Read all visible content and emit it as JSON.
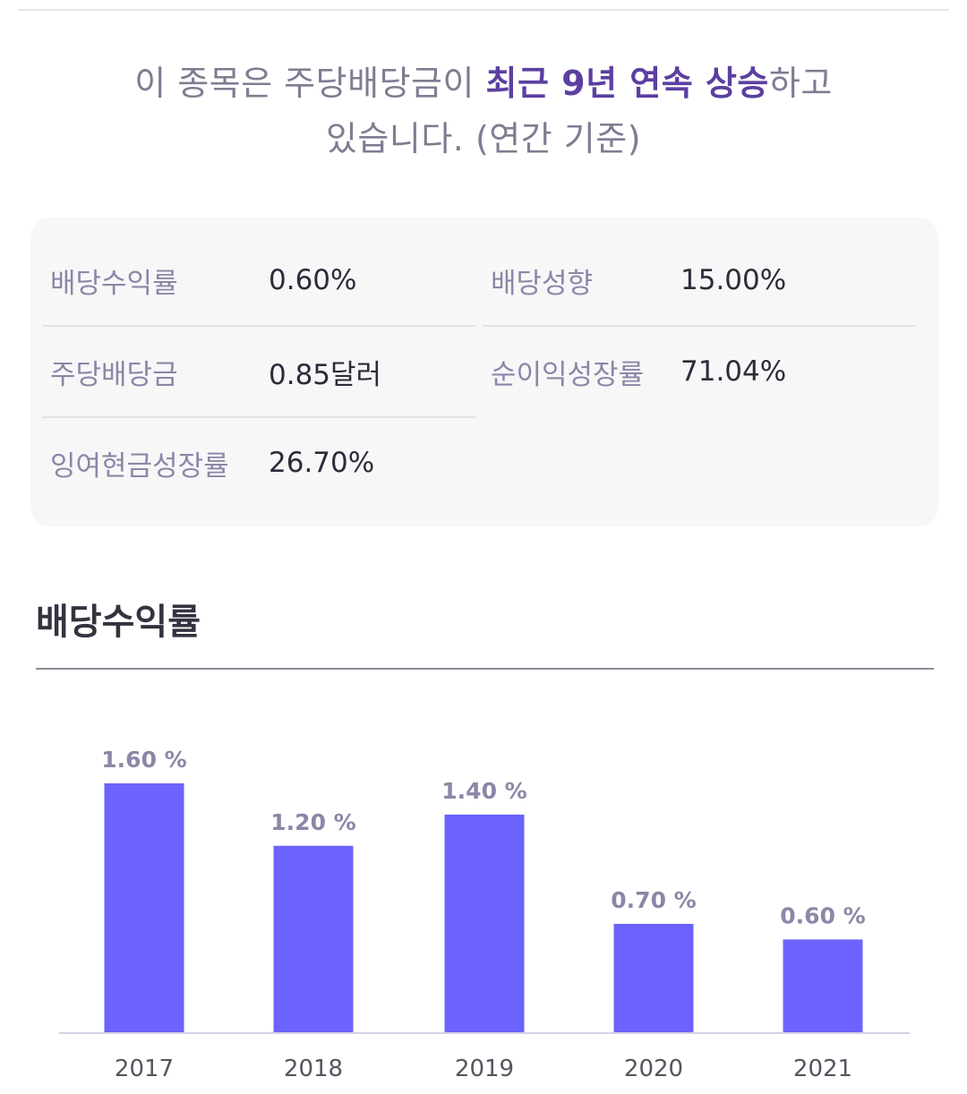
{
  "headline": {
    "prefix": "이 종목은 주당배당금이 ",
    "highlight": "최근 9년 연속 상승",
    "suffix": "하고",
    "line2": "있습니다. (연간 기준)"
  },
  "metrics": [
    {
      "label": "배당수익률",
      "value": "0.60%"
    },
    {
      "label": "배당성향",
      "value": "15.00%"
    },
    {
      "label": "주당배당금",
      "value": "0.85달러"
    },
    {
      "label": "순이익성장률",
      "value": "71.04%"
    },
    {
      "label": "잉여현금성장률",
      "value": "26.70%"
    }
  ],
  "section": {
    "title": "배당수익률"
  },
  "colors": {
    "bar": "#6c63ff",
    "label": "#8a87a7",
    "highlight": "#5c3fa1"
  },
  "chart_data": {
    "type": "bar",
    "categories": [
      "2017",
      "2018",
      "2019",
      "2020",
      "2021"
    ],
    "values": [
      1.6,
      1.2,
      1.4,
      0.7,
      0.6
    ],
    "value_labels": [
      "1.60 %",
      "1.20 %",
      "1.40 %",
      "0.70 %",
      "0.60 %"
    ],
    "title": "배당수익률",
    "xlabel": "",
    "ylabel": "",
    "ylim": [
      0,
      1.6
    ],
    "grid": false
  }
}
